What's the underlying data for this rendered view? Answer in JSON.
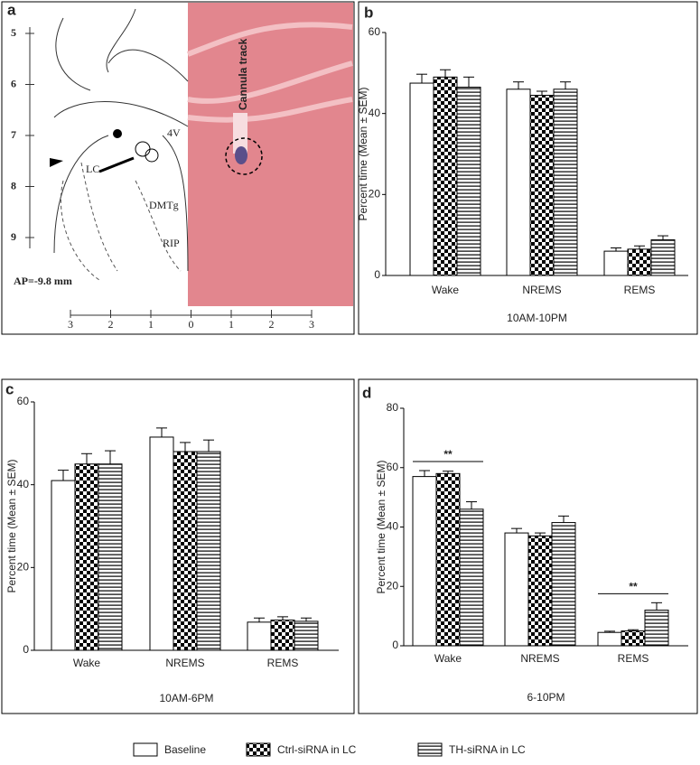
{
  "panel_a": {
    "label": "a",
    "left_scale": [
      5,
      6,
      7,
      8,
      9
    ],
    "bottom_scale": [
      3,
      2,
      1,
      0,
      1,
      2,
      3
    ],
    "labels": {
      "v4": "4V",
      "lc": "LC",
      "dmtg": "DMTg",
      "rip": "RIP",
      "ap": "AP=-9.8 mm",
      "cannula": "Cannula track"
    }
  },
  "chart_data": [
    {
      "type": "bar",
      "panel": "b",
      "xlabel": "10AM-10PM",
      "ylabel": "Percent time (Mean ± SEM)",
      "categories": [
        "Wake",
        "NREMS",
        "REMS"
      ],
      "ylim": [
        0,
        60
      ],
      "yticks": [
        0,
        20,
        40,
        60
      ],
      "series": [
        {
          "name": "Baseline",
          "fill": "solid",
          "values": [
            47.5,
            46,
            6
          ],
          "errors": [
            2.2,
            1.8,
            0.8
          ]
        },
        {
          "name": "Ctrl-siRNA in LC",
          "fill": "checker",
          "values": [
            49,
            44.5,
            6.5
          ],
          "errors": [
            1.8,
            1,
            0.8
          ]
        },
        {
          "name": "TH-siRNA in LC",
          "fill": "stripes",
          "values": [
            46.5,
            46,
            8.8
          ],
          "errors": [
            2.5,
            1.8,
            1
          ]
        }
      ]
    },
    {
      "type": "bar",
      "panel": "c",
      "xlabel": "10AM-6PM",
      "ylabel": "Percent time (Mean ± SEM)",
      "categories": [
        "Wake",
        "NREMS",
        "REMS"
      ],
      "ylim": [
        0,
        60
      ],
      "yticks": [
        0,
        20,
        40,
        60
      ],
      "series": [
        {
          "name": "Baseline",
          "fill": "solid",
          "values": [
            41,
            51.5,
            6.8
          ],
          "errors": [
            2.5,
            2.2,
            1
          ]
        },
        {
          "name": "Ctrl-siRNA in LC",
          "fill": "checker",
          "values": [
            45,
            48,
            7.3
          ],
          "errors": [
            2.5,
            2.2,
            0.8
          ]
        },
        {
          "name": "TH-siRNA in LC",
          "fill": "stripes",
          "values": [
            45,
            48,
            7
          ],
          "errors": [
            3.2,
            2.8,
            0.8
          ]
        }
      ]
    },
    {
      "type": "bar",
      "panel": "d",
      "xlabel": "6-10PM",
      "ylabel": "Percent time (Mean ± SEM)",
      "categories": [
        "Wake",
        "NREMS",
        "REMS"
      ],
      "ylim": [
        0,
        80
      ],
      "yticks": [
        0,
        20,
        40,
        60,
        80
      ],
      "series": [
        {
          "name": "Baseline",
          "fill": "solid",
          "values": [
            57,
            38,
            4.5
          ],
          "errors": [
            2,
            1.5,
            0.4
          ]
        },
        {
          "name": "Ctrl-siRNA in LC",
          "fill": "checker",
          "values": [
            58,
            37,
            5
          ],
          "errors": [
            0.8,
            1,
            0.4
          ]
        },
        {
          "name": "TH-siRNA in LC",
          "fill": "stripes",
          "values": [
            46,
            41.5,
            12
          ],
          "errors": [
            2.5,
            2.2,
            2.5
          ]
        }
      ],
      "annotations": [
        {
          "text": "**",
          "category": "Wake"
        },
        {
          "text": "**",
          "category": "REMS"
        }
      ]
    }
  ]
}
